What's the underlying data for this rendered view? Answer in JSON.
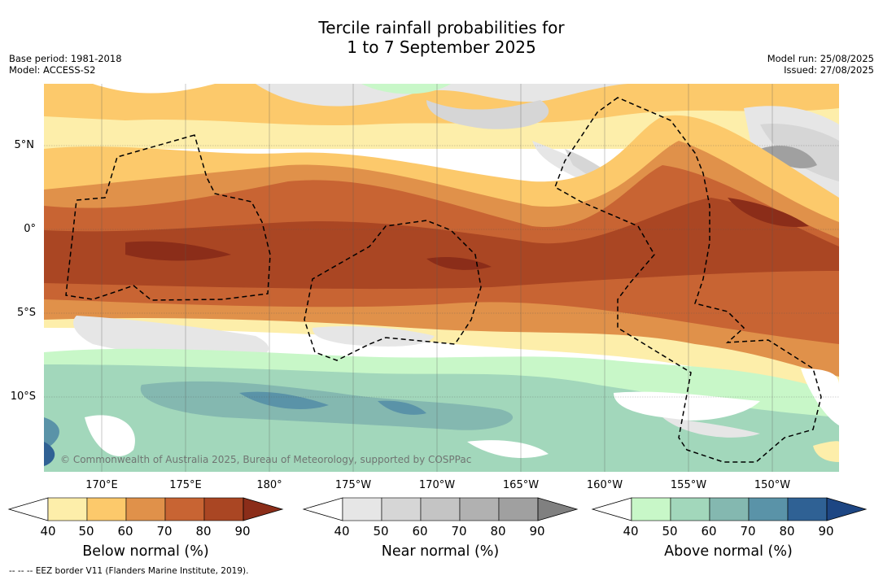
{
  "header": {
    "title_line1": "Tercile rainfall probabilities for",
    "title_line2": "1 to 7 September 2025",
    "base_period": "Base period: 1981-2018",
    "model": "Model: ACCESS-S2",
    "model_run": "Model run: 25/08/2025",
    "issued": "Issued: 27/08/2025"
  },
  "map": {
    "lat_labels": [
      "5°N",
      "0°",
      "5°S",
      "10°S"
    ],
    "lon_labels": [
      "170°E",
      "175°E",
      "180°",
      "175°W",
      "170°W",
      "165°W",
      "160°W",
      "155°W",
      "150°W"
    ],
    "copyright": "© Commonwealth of Australia 2025, Bureau of Meteorology, supported by COSPPac",
    "layers": [
      "tercile-probability-shading",
      "eez-borders",
      "graticule"
    ]
  },
  "colorbars": [
    {
      "title": "Below normal (%)",
      "ticks": [
        "40",
        "50",
        "60",
        "70",
        "80",
        "90"
      ],
      "colors": [
        "#ffffff",
        "#fdeeaa",
        "#fcc96b",
        "#e0914a",
        "#c86433",
        "#aa4623",
        "#8b2d19"
      ]
    },
    {
      "title": "Near normal (%)",
      "ticks": [
        "40",
        "50",
        "60",
        "70",
        "80",
        "90"
      ],
      "colors": [
        "#ffffff",
        "#e6e6e6",
        "#d6d6d6",
        "#c4c4c4",
        "#b1b1b1",
        "#a0a0a0",
        "#808080"
      ]
    },
    {
      "title": "Above normal (%)",
      "ticks": [
        "40",
        "50",
        "60",
        "70",
        "80",
        "90"
      ],
      "colors": [
        "#ffffff",
        "#c8f7c8",
        "#a2d7bb",
        "#84b8b0",
        "#5a93a8",
        "#2f6194",
        "#1d4683"
      ]
    }
  ],
  "footnote": "--  --  -- EEZ border V11 (Flanders Marine Institute, 2019)."
}
